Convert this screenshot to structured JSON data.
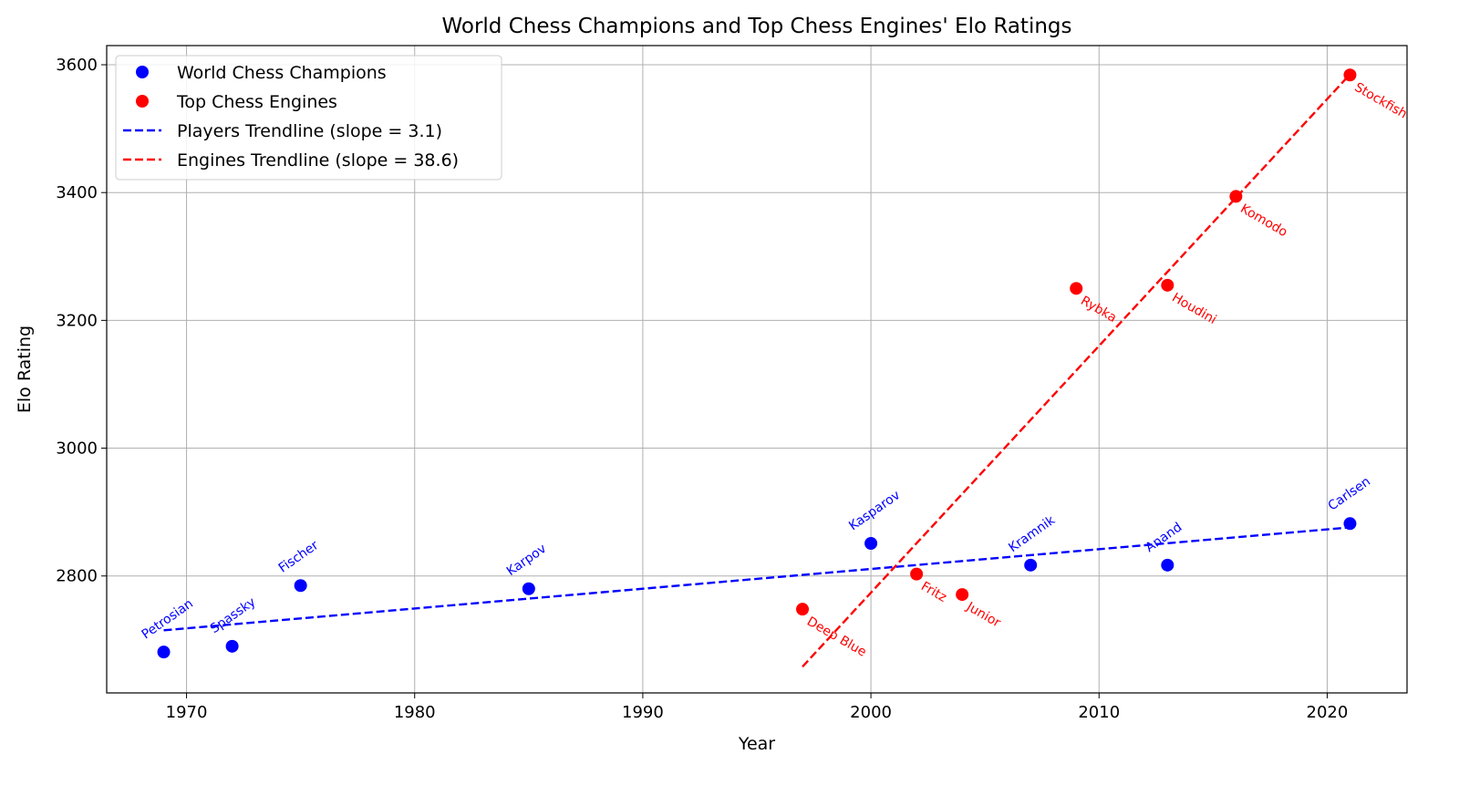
{
  "chart_data": {
    "type": "scatter",
    "title": "World Chess Champions and Top Chess Engines' Elo Ratings",
    "xlabel": "Year",
    "ylabel": "Elo Rating",
    "xlim": [
      1966.5,
      2023.5
    ],
    "ylim": [
      2617,
      3630
    ],
    "xticks": [
      1970,
      1980,
      1990,
      2000,
      2010,
      2020
    ],
    "yticks": [
      2800,
      3000,
      3200,
      3400,
      3600
    ],
    "grid": true,
    "legend_position": "top-left",
    "colors": {
      "players": "#0000ff",
      "engines": "#ff0000"
    },
    "series": [
      {
        "name": "World Chess Champions",
        "key": "players",
        "color": "#0000ff",
        "points": [
          {
            "label": "Petrosian",
            "x": 1969,
            "y": 2681
          },
          {
            "label": "Spassky",
            "x": 1972,
            "y": 2690
          },
          {
            "label": "Fischer",
            "x": 1975,
            "y": 2785
          },
          {
            "label": "Karpov",
            "x": 1985,
            "y": 2780
          },
          {
            "label": "Kasparov",
            "x": 2000,
            "y": 2851
          },
          {
            "label": "Kramnik",
            "x": 2007,
            "y": 2817
          },
          {
            "label": "Anand",
            "x": 2013,
            "y": 2817
          },
          {
            "label": "Carlsen",
            "x": 2021,
            "y": 2882
          }
        ]
      },
      {
        "name": "Top Chess Engines",
        "key": "engines",
        "color": "#ff0000",
        "points": [
          {
            "label": "Deep Blue",
            "x": 1997,
            "y": 2748
          },
          {
            "label": "Fritz",
            "x": 2002,
            "y": 2803
          },
          {
            "label": "Junior",
            "x": 2004,
            "y": 2771
          },
          {
            "label": "Rybka",
            "x": 2009,
            "y": 3250
          },
          {
            "label": "Houdini",
            "x": 2013,
            "y": 3255
          },
          {
            "label": "Komodo",
            "x": 2016,
            "y": 3394
          },
          {
            "label": "Stockfish",
            "x": 2021,
            "y": 3584
          }
        ]
      }
    ],
    "trendlines": [
      {
        "name": "Players Trendline (slope = 3.1)",
        "key": "players",
        "color": "#0000ff",
        "x0": 1969,
        "y0": 2715,
        "x1": 2021,
        "y1": 2876
      },
      {
        "name": "Engines Trendline (slope = 38.6)",
        "key": "engines",
        "color": "#ff0000",
        "x0": 1997,
        "y0": 2658,
        "x1": 2021,
        "y1": 3585
      }
    ]
  }
}
